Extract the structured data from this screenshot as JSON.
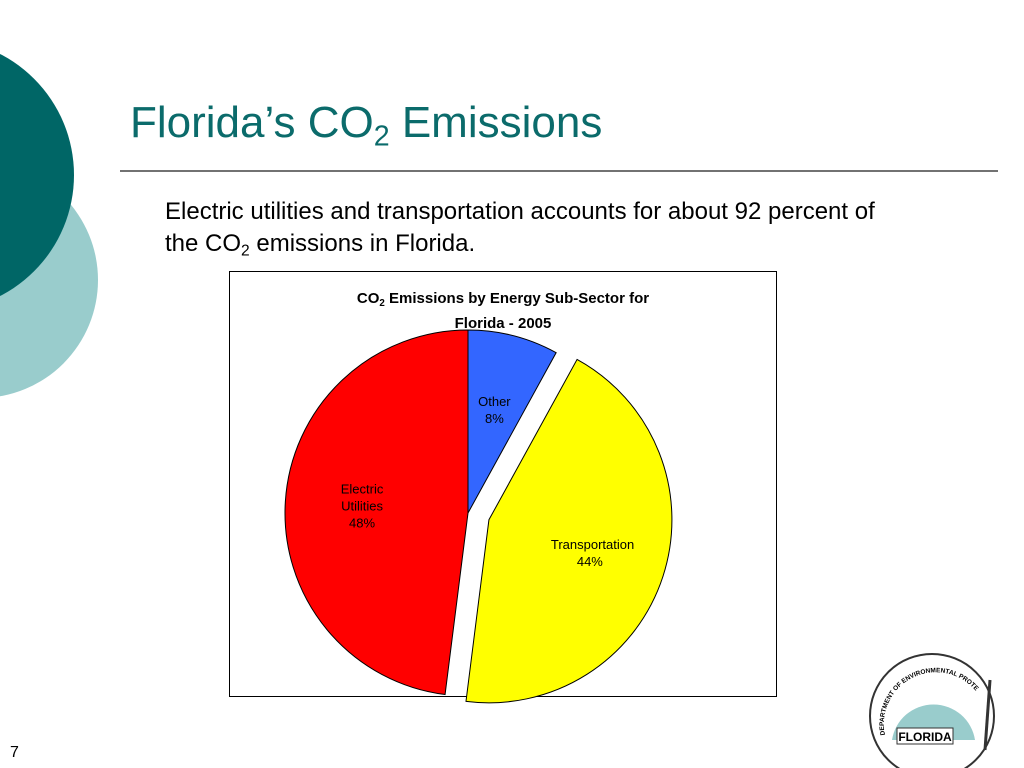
{
  "slide": {
    "title_parts": [
      "Florida’s CO",
      "2",
      " Emissions"
    ],
    "body_parts": [
      "Electric utilities and transportation accounts for about 92 percent of the CO",
      "2",
      " emissions in Florida."
    ],
    "page_number": "7",
    "logo": {
      "arc_text": "DEPARTMENT OF ENVIRONMENTAL PROTECTION",
      "label": "FLORIDA"
    }
  },
  "chart_data": {
    "type": "pie",
    "title_parts": [
      "CO",
      "2",
      " Emissions by Energy Sub-Sector for Florida - 2005"
    ],
    "categories": [
      "Other",
      "Transportation",
      "Electric Utilities"
    ],
    "values": [
      8,
      44,
      48
    ],
    "value_labels": [
      "8%",
      "44%",
      "48%"
    ],
    "colors": [
      "#3366ff",
      "#ffff00",
      "#ff0000"
    ],
    "explode": [
      false,
      true,
      false
    ]
  }
}
